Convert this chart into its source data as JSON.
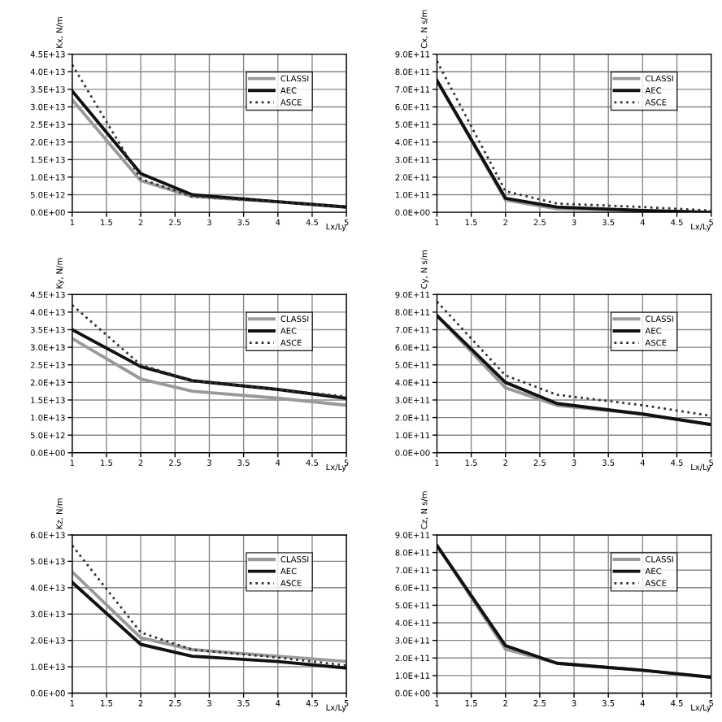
{
  "chart_data": [
    {
      "type": "line",
      "ylabel": "Kx, N/m",
      "xlabel": "Lx/Ly",
      "x": [
        1,
        2,
        2.75,
        4,
        5
      ],
      "xlim": [
        1,
        5
      ],
      "xticks": [
        1,
        1.5,
        2,
        2.5,
        3,
        3.5,
        4,
        4.5,
        5
      ],
      "ylim": [
        0,
        45000000000000.0
      ],
      "yticks": [
        {
          "value": 0,
          "label": "0.0E+00"
        },
        {
          "value": 5000000000000.0,
          "label": "5.0E+12"
        },
        {
          "value": 10000000000000.0,
          "label": "1.0E+13"
        },
        {
          "value": 15000000000000.0,
          "label": "1.5E+13"
        },
        {
          "value": 20000000000000.0,
          "label": "2.0E+13"
        },
        {
          "value": 25000000000000.0,
          "label": "2.5E+13"
        },
        {
          "value": 30000000000000.0,
          "label": "3.0E+13"
        },
        {
          "value": 35000000000000.0,
          "label": "3.5E+13"
        },
        {
          "value": 40000000000000.0,
          "label": "4.0E+13"
        },
        {
          "value": 45000000000000.0,
          "label": "4.5E+13"
        }
      ],
      "grid": true,
      "legend": "top right",
      "marker": "none",
      "series": [
        {
          "name": "CLASSI",
          "color": "#9a9a9a",
          "line_style": "solid",
          "values": [
            32000000000000.0,
            9000000000000.0,
            4500000000000.0,
            3000000000000.0,
            1500000000000.0
          ]
        },
        {
          "name": "AEC",
          "color": "#111111",
          "line_style": "solid",
          "values": [
            34500000000000.0,
            11000000000000.0,
            5000000000000.0,
            3000000000000.0,
            1500000000000.0
          ]
        },
        {
          "name": "ASCE",
          "color": "#333333",
          "line_style": "dotted",
          "values": [
            42000000000000.0,
            9500000000000.0,
            4500000000000.0,
            3000000000000.0,
            1500000000000.0
          ]
        }
      ]
    },
    {
      "type": "line",
      "ylabel": "Cx, N s/m",
      "xlabel": "Lx/Ly",
      "x": [
        1,
        2,
        2.75,
        4,
        5
      ],
      "xlim": [
        1,
        5
      ],
      "xticks": [
        1,
        1.5,
        2,
        2.5,
        3,
        3.5,
        4,
        4.5,
        5
      ],
      "ylim": [
        0,
        900000000000.0
      ],
      "yticks": [
        {
          "value": 0,
          "label": "0.0E+00"
        },
        {
          "value": 100000000000.0,
          "label": "1.0E+11"
        },
        {
          "value": 200000000000.0,
          "label": "2.0E+11"
        },
        {
          "value": 300000000000.0,
          "label": "3.0E+11"
        },
        {
          "value": 400000000000.0,
          "label": "4.0E+11"
        },
        {
          "value": 500000000000.0,
          "label": "5.0E+11"
        },
        {
          "value": 600000000000.0,
          "label": "6.0E+11"
        },
        {
          "value": 700000000000.0,
          "label": "7.0E+11"
        },
        {
          "value": 800000000000.0,
          "label": "8.0E+11"
        },
        {
          "value": 900000000000.0,
          "label": "9.0E+11"
        }
      ],
      "grid": true,
      "legend": "top right",
      "marker": "none",
      "series": [
        {
          "name": "CLASSI",
          "color": "#9a9a9a",
          "line_style": "solid",
          "values": [
            750000000000.0,
            70000000000.0,
            20000000000.0,
            10000000000.0,
            0
          ]
        },
        {
          "name": "AEC",
          "color": "#111111",
          "line_style": "solid",
          "values": [
            750000000000.0,
            80000000000.0,
            30000000000.0,
            10000000000.0,
            0
          ]
        },
        {
          "name": "ASCE",
          "color": "#333333",
          "line_style": "dotted",
          "values": [
            860000000000.0,
            120000000000.0,
            50000000000.0,
            30000000000.0,
            10000000000.0
          ]
        }
      ]
    },
    {
      "type": "line",
      "ylabel": "Ky, N/m",
      "xlabel": "Lx/Ly",
      "x": [
        1,
        2,
        2.75,
        4,
        5
      ],
      "xlim": [
        1,
        5
      ],
      "xticks": [
        1,
        1.5,
        2,
        2.5,
        3,
        3.5,
        4,
        4.5,
        5
      ],
      "ylim": [
        0,
        45000000000000.0
      ],
      "yticks": [
        {
          "value": 0,
          "label": "0.0E+00"
        },
        {
          "value": 5000000000000.0,
          "label": "5.0E+12"
        },
        {
          "value": 10000000000000.0,
          "label": "1.0E+13"
        },
        {
          "value": 15000000000000.0,
          "label": "1.5E+13"
        },
        {
          "value": 20000000000000.0,
          "label": "2.0E+13"
        },
        {
          "value": 25000000000000.0,
          "label": "2.5E+13"
        },
        {
          "value": 30000000000000.0,
          "label": "3.0E+13"
        },
        {
          "value": 35000000000000.0,
          "label": "3.5E+13"
        },
        {
          "value": 40000000000000.0,
          "label": "4.0E+13"
        },
        {
          "value": 45000000000000.0,
          "label": "4.5E+13"
        }
      ],
      "grid": true,
      "legend": "top right",
      "marker": "none",
      "series": [
        {
          "name": "CLASSI",
          "color": "#9a9a9a",
          "line_style": "solid",
          "values": [
            32500000000000.0,
            21000000000000.0,
            17500000000000.0,
            15500000000000.0,
            13500000000000.0
          ]
        },
        {
          "name": "AEC",
          "color": "#111111",
          "line_style": "solid",
          "values": [
            35000000000000.0,
            24500000000000.0,
            20500000000000.0,
            18000000000000.0,
            15500000000000.0
          ]
        },
        {
          "name": "ASCE",
          "color": "#333333",
          "line_style": "dotted",
          "values": [
            42000000000000.0,
            25000000000000.0,
            20500000000000.0,
            18000000000000.0,
            16000000000000.0
          ]
        }
      ]
    },
    {
      "type": "line",
      "ylabel": "Cy, N s/m",
      "xlabel": "Lx/Ly",
      "x": [
        1,
        2,
        2.75,
        4,
        5
      ],
      "xlim": [
        1,
        5
      ],
      "xticks": [
        1,
        1.5,
        2,
        2.5,
        3,
        3.5,
        4,
        4.5,
        5
      ],
      "ylim": [
        0,
        900000000000.0
      ],
      "yticks": [
        {
          "value": 0,
          "label": "0.0E+00"
        },
        {
          "value": 100000000000.0,
          "label": "1.0E+11"
        },
        {
          "value": 200000000000.0,
          "label": "2.0E+11"
        },
        {
          "value": 300000000000.0,
          "label": "3.0E+11"
        },
        {
          "value": 400000000000.0,
          "label": "4.0E+11"
        },
        {
          "value": 500000000000.0,
          "label": "5.0E+11"
        },
        {
          "value": 600000000000.0,
          "label": "6.0E+11"
        },
        {
          "value": 700000000000.0,
          "label": "7.0E+11"
        },
        {
          "value": 800000000000.0,
          "label": "8.0E+11"
        },
        {
          "value": 900000000000.0,
          "label": "9.0E+11"
        }
      ],
      "grid": true,
      "legend": "top right",
      "marker": "none",
      "series": [
        {
          "name": "CLASSI",
          "color": "#9a9a9a",
          "line_style": "solid",
          "values": [
            780000000000.0,
            370000000000.0,
            270000000000.0,
            220000000000.0,
            160000000000.0
          ]
        },
        {
          "name": "AEC",
          "color": "#111111",
          "line_style": "solid",
          "values": [
            780000000000.0,
            400000000000.0,
            280000000000.0,
            220000000000.0,
            160000000000.0
          ]
        },
        {
          "name": "ASCE",
          "color": "#333333",
          "line_style": "dotted",
          "values": [
            860000000000.0,
            440000000000.0,
            330000000000.0,
            270000000000.0,
            210000000000.0
          ]
        }
      ]
    },
    {
      "type": "line",
      "ylabel": "Kz, N/m",
      "xlabel": "Lx/Ly",
      "x": [
        1,
        2,
        2.75,
        4,
        5
      ],
      "xlim": [
        1,
        5
      ],
      "xticks": [
        1,
        1.5,
        2,
        2.5,
        3,
        3.5,
        4,
        4.5,
        5
      ],
      "ylim": [
        0,
        60000000000000.0
      ],
      "yticks": [
        {
          "value": 0,
          "label": "0.0E+00"
        },
        {
          "value": 10000000000000.0,
          "label": "1.0E+13"
        },
        {
          "value": 20000000000000.0,
          "label": "2.0E+13"
        },
        {
          "value": 30000000000000.0,
          "label": "3.0E+13"
        },
        {
          "value": 40000000000000.0,
          "label": "4.0E+13"
        },
        {
          "value": 50000000000000.0,
          "label": "5.0E+13"
        },
        {
          "value": 60000000000000.0,
          "label": "6.0E+13"
        }
      ],
      "grid": true,
      "legend": "top right",
      "marker": "none",
      "series": [
        {
          "name": "CLASSI",
          "color": "#9a9a9a",
          "line_style": "solid",
          "values": [
            46000000000000.0,
            21000000000000.0,
            16500000000000.0,
            14000000000000.0,
            12000000000000.0
          ]
        },
        {
          "name": "AEC",
          "color": "#111111",
          "line_style": "solid",
          "values": [
            42000000000000.0,
            18500000000000.0,
            14000000000000.0,
            12000000000000.0,
            9500000000000.0
          ]
        },
        {
          "name": "ASCE",
          "color": "#333333",
          "line_style": "dotted",
          "values": [
            56000000000000.0,
            23000000000000.0,
            16500000000000.0,
            13500000000000.0,
            10500000000000.0
          ]
        }
      ]
    },
    {
      "type": "line",
      "ylabel": "Cz, N s/m",
      "xlabel": "Lx/Ly",
      "x": [
        1,
        2,
        2.75,
        4,
        5
      ],
      "xlim": [
        1,
        5
      ],
      "xticks": [
        1,
        1.5,
        2,
        2.5,
        3,
        3.5,
        4,
        4.5,
        5
      ],
      "ylim": [
        0,
        900000000000.0
      ],
      "yticks": [
        {
          "value": 0,
          "label": "0.0E+00"
        },
        {
          "value": 100000000000.0,
          "label": "1.0E+11"
        },
        {
          "value": 200000000000.0,
          "label": "2.0E+11"
        },
        {
          "value": 300000000000.0,
          "label": "3.0E+11"
        },
        {
          "value": 400000000000.0,
          "label": "4.0E+11"
        },
        {
          "value": 500000000000.0,
          "label": "5.0E+11"
        },
        {
          "value": 600000000000.0,
          "label": "6.0E+11"
        },
        {
          "value": 700000000000.0,
          "label": "7.0E+11"
        },
        {
          "value": 800000000000.0,
          "label": "8.0E+11"
        },
        {
          "value": 900000000000.0,
          "label": "9.0E+11"
        }
      ],
      "grid": true,
      "legend": "top right",
      "marker": "none",
      "series": [
        {
          "name": "CLASSI",
          "color": "#9a9a9a",
          "line_style": "solid",
          "values": [
            840000000000.0,
            250000000000.0,
            170000000000.0,
            130000000000.0,
            90000000000.0
          ]
        },
        {
          "name": "AEC",
          "color": "#111111",
          "line_style": "solid",
          "values": [
            840000000000.0,
            270000000000.0,
            170000000000.0,
            130000000000.0,
            90000000000.0
          ]
        },
        {
          "name": "ASCE",
          "color": "#333333",
          "line_style": "dotted",
          "values": [
            null,
            null,
            null,
            null,
            null
          ]
        }
      ]
    }
  ]
}
